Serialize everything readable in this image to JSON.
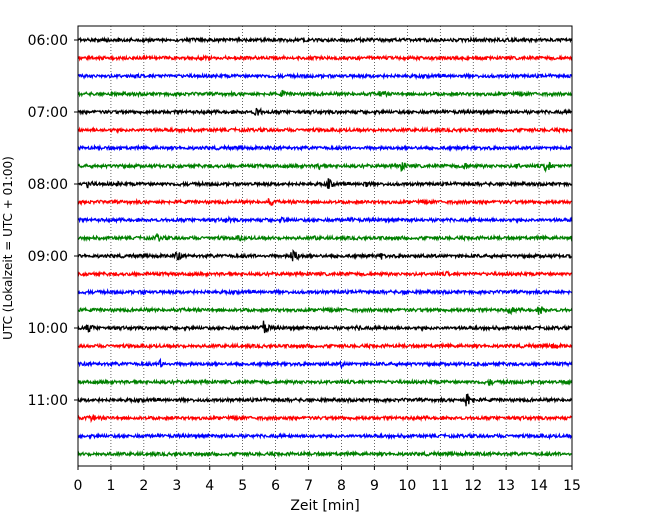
{
  "chart_data": {
    "type": "line",
    "title": "",
    "xlabel": "Zeit  [min]",
    "ylabel": "UTC (Lokalzeit = UTC + 01:00)",
    "xlim": [
      0,
      15
    ],
    "x_ticks": [
      "0",
      "1",
      "2",
      "3",
      "4",
      "5",
      "6",
      "7",
      "8",
      "9",
      "10",
      "11",
      "12",
      "13",
      "14",
      "15"
    ],
    "y_ticks": [
      "06:00",
      "07:00",
      "08:00",
      "09:00",
      "10:00",
      "11:00"
    ],
    "grid": "vertical dotted",
    "trace_interval_min": 15,
    "trace_colors": [
      "#000000",
      "#ff0000",
      "#0000ff",
      "#008000"
    ],
    "series": [
      {
        "values": [
          {
            "t": 4.8,
            "amp": 4
          }
        ]
      },
      {
        "values": []
      },
      {
        "values": [
          {
            "t": 1.7,
            "amp": 3
          }
        ]
      },
      {
        "values": [
          {
            "t": 6.2,
            "amp": 4
          },
          {
            "t": 9.2,
            "amp": 5
          }
        ]
      },
      {
        "values": [
          {
            "t": 5.4,
            "amp": 7
          }
        ]
      },
      {
        "values": []
      },
      {
        "values": []
      },
      {
        "values": [
          {
            "t": 7.3,
            "amp": 4
          },
          {
            "t": 9.8,
            "amp": 6
          },
          {
            "t": 11.7,
            "amp": 5
          },
          {
            "t": 13.3,
            "amp": 4
          },
          {
            "t": 14.2,
            "amp": 7
          }
        ]
      },
      {
        "values": [
          {
            "t": 0.3,
            "amp": 5
          },
          {
            "t": 1.2,
            "amp": 3
          },
          {
            "t": 7.6,
            "amp": 6
          },
          {
            "t": 8.7,
            "amp": 4
          }
        ]
      },
      {
        "values": [
          {
            "t": 5.8,
            "amp": 5
          }
        ]
      },
      {
        "values": [
          {
            "t": 4.5,
            "amp": 4
          },
          {
            "t": 6.2,
            "amp": 4
          },
          {
            "t": 8.3,
            "amp": 3
          }
        ]
      },
      {
        "values": [
          {
            "t": 2.4,
            "amp": 5
          },
          {
            "t": 4.9,
            "amp": 4
          },
          {
            "t": 7.2,
            "amp": 3
          }
        ]
      },
      {
        "values": [
          {
            "t": 3.0,
            "amp": 6
          },
          {
            "t": 6.5,
            "amp": 9
          },
          {
            "t": 9.2,
            "amp": 4
          }
        ]
      },
      {
        "values": [
          {
            "t": 11.2,
            "amp": 3
          }
        ]
      },
      {
        "values": [
          {
            "t": 2.0,
            "amp": 3
          },
          {
            "t": 9.9,
            "amp": 4
          }
        ]
      },
      {
        "values": [
          {
            "t": 13.1,
            "amp": 5
          },
          {
            "t": 14.0,
            "amp": 6
          }
        ]
      },
      {
        "values": [
          {
            "t": 0.3,
            "amp": 6
          },
          {
            "t": 5.6,
            "amp": 9
          },
          {
            "t": 8.5,
            "amp": 4
          }
        ]
      },
      {
        "values": [
          {
            "t": 14.4,
            "amp": 4
          }
        ]
      },
      {
        "values": [
          {
            "t": 2.5,
            "amp": 5
          },
          {
            "t": 8.0,
            "amp": 4
          }
        ]
      },
      {
        "values": [
          {
            "t": 12.5,
            "amp": 4
          },
          {
            "t": 14.8,
            "amp": 4
          }
        ]
      },
      {
        "values": [
          {
            "t": 11.8,
            "amp": 10
          }
        ]
      },
      {
        "values": [
          {
            "t": 0.4,
            "amp": 5
          }
        ]
      },
      {
        "values": []
      },
      {
        "values": []
      }
    ]
  }
}
